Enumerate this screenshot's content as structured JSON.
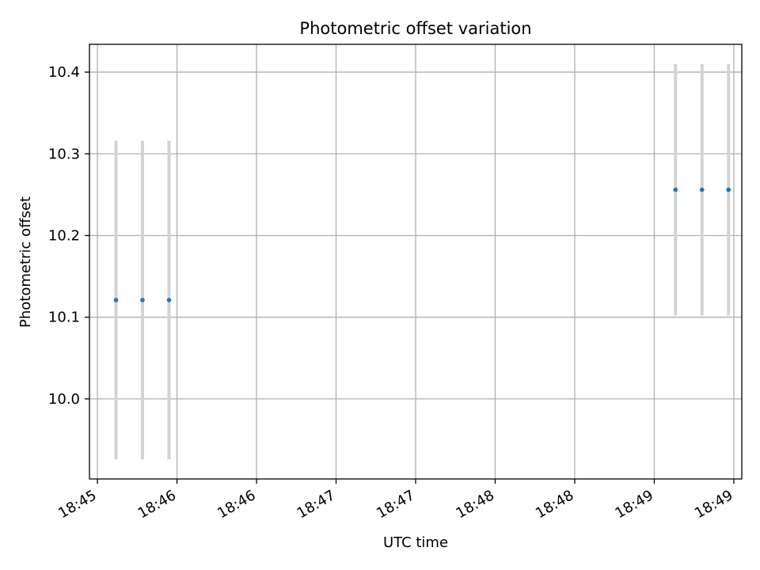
{
  "chart_data": {
    "type": "scatter",
    "title": "Photometric offset variation",
    "xlabel": "UTC time",
    "ylabel": "Photometric offset",
    "x_tick_labels": [
      "18:45",
      "18:46",
      "18:46",
      "18:47",
      "18:47",
      "18:48",
      "18:48",
      "18:49",
      "18:49"
    ],
    "y_tick_labels": [
      "10.0",
      "10.1",
      "10.2",
      "10.3",
      "10.4"
    ],
    "y_ticks": [
      10.0,
      10.1,
      10.2,
      10.3,
      10.4
    ],
    "xlim": [
      "18:44:57",
      "18:49:03"
    ],
    "ylim": [
      9.902,
      10.434
    ],
    "grid": true,
    "series": [
      {
        "points": [
          {
            "x": "18:45:07",
            "y": 10.121,
            "yerr": 0.195
          },
          {
            "x": "18:45:17",
            "y": 10.121,
            "yerr": 0.195
          },
          {
            "x": "18:45:27",
            "y": 10.121,
            "yerr": 0.195
          },
          {
            "x": "18:48:38",
            "y": 10.256,
            "yerr": 0.154
          },
          {
            "x": "18:48:48",
            "y": 10.256,
            "yerr": 0.154
          },
          {
            "x": "18:48:58",
            "y": 10.256,
            "yerr": 0.154
          }
        ]
      }
    ],
    "colors": {
      "marker": "#1f77b4",
      "errorbar": "#d3d3d3",
      "grid": "#b0b0b0",
      "axes": "#000000"
    }
  }
}
